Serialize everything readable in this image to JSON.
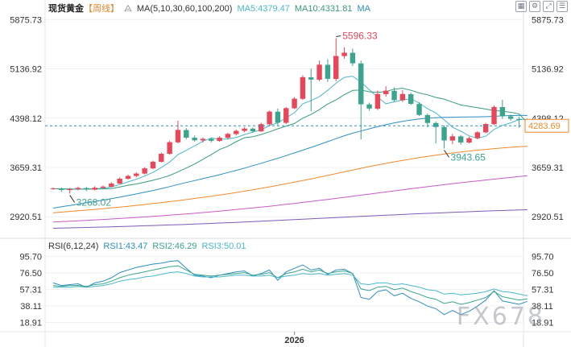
{
  "header": {
    "title": "现货黄金",
    "period": "【周线】",
    "ma_label": "MA(5,10,30,60,100,200)",
    "ma5_text": "MA5:4379.47",
    "ma10_text": "MA10:4331.81",
    "ma_more": "MA"
  },
  "rsi_header": {
    "label": "RSI(6,12,24)",
    "rsi1_text": "RSI1:43.47",
    "rsi2_text": "RSI2:46.29",
    "rsi3_text": "RSI3:50.01"
  },
  "watermark": "FX678",
  "toolbar": {
    "icons": [
      "grid-icon",
      "settings-icon",
      "expand-icon",
      "list-icon"
    ]
  },
  "colors": {
    "up": "#e8475a",
    "down": "#3aa58c",
    "ma5": "#4bb7c9",
    "ma10": "#3a9c7a",
    "ma30": "#2f8fc2",
    "ma60": "#f08a2c",
    "ma100": "#c85bc7",
    "ma200": "#7c5bb8",
    "rsi1": "#2f8fc2",
    "rsi2": "#3aa58c",
    "rsi3": "#4bb7c9",
    "price_line": "#2f8fc2"
  },
  "chart_data": {
    "type": "candlestick",
    "price_axis": {
      "ticks": [
        5875.73,
        5136.92,
        4398.12,
        3659.31,
        2920.51
      ],
      "ylim": [
        2730,
        6000
      ]
    },
    "rsi_axis": {
      "ticks": [
        95.7,
        76.5,
        57.31,
        38.11,
        18.91
      ],
      "ylim": [
        10,
        102
      ]
    },
    "time_labels": [
      {
        "index": 29,
        "text": "2026"
      }
    ],
    "current_price": 4283.69,
    "current_price_label": "4283.69",
    "annotations": [
      {
        "label": "5596.33",
        "index": 34,
        "value": 5596.33
      },
      {
        "label": "3268.02",
        "index": 2,
        "value": 3268.02
      },
      {
        "label": "3943.65",
        "index": 47,
        "value": 3943.65
      }
    ],
    "candles": [
      [
        3340,
        3346,
        3325,
        3358
      ],
      [
        3344,
        3322,
        3295,
        3360
      ],
      [
        3320,
        3336,
        3268.02,
        3352
      ],
      [
        3335,
        3352,
        3315,
        3372
      ],
      [
        3350,
        3328,
        3305,
        3366
      ],
      [
        3326,
        3356,
        3316,
        3378
      ],
      [
        3355,
        3372,
        3341,
        3388
      ],
      [
        3371,
        3418,
        3362,
        3438
      ],
      [
        3418,
        3491,
        3410,
        3509
      ],
      [
        3490,
        3532,
        3476,
        3553
      ],
      [
        3532,
        3568,
        3512,
        3586
      ],
      [
        3567,
        3646,
        3555,
        3665
      ],
      [
        3645,
        3745,
        3633,
        3761
      ],
      [
        3744,
        3864,
        3735,
        3884
      ],
      [
        3863,
        4038,
        3850,
        4060
      ],
      [
        4036,
        4222,
        4020,
        4362
      ],
      [
        4220,
        4106,
        4082,
        4250
      ],
      [
        4105,
        4066,
        4046,
        4138
      ],
      [
        4065,
        4088,
        4032,
        4110
      ],
      [
        4087,
        4058,
        4035,
        4110
      ],
      [
        4057,
        4105,
        4045,
        4128
      ],
      [
        4103,
        4162,
        4083,
        4182
      ],
      [
        4160,
        4208,
        4140,
        4228
      ],
      [
        4207,
        4242,
        4187,
        4262
      ],
      [
        4241,
        4202,
        4180,
        4260
      ],
      [
        4200,
        4308,
        4193,
        4330
      ],
      [
        4306,
        4496,
        4296,
        4512
      ],
      [
        4494,
        4330,
        4290,
        4542
      ],
      [
        4328,
        4548,
        4310,
        4566
      ],
      [
        4546,
        4690,
        4535,
        4712
      ],
      [
        4688,
        5012,
        4673,
        5042
      ],
      [
        5010,
        4976,
        4500,
        5140
      ],
      [
        4974,
        5200,
        4950,
        5260
      ],
      [
        5198,
        4988,
        4940,
        5280
      ],
      [
        4986,
        5330,
        4950,
        5596.33
      ],
      [
        5328,
        5380,
        5290,
        5460
      ],
      [
        5378,
        5220,
        5180,
        5440
      ],
      [
        5218,
        4606,
        4080,
        5260
      ],
      [
        4604,
        4542,
        4510,
        4630
      ],
      [
        4540,
        4760,
        4520,
        4812
      ],
      [
        4758,
        4810,
        4720,
        4875
      ],
      [
        4808,
        4668,
        4640,
        4860
      ],
      [
        4666,
        4760,
        4640,
        4820
      ],
      [
        4758,
        4612,
        4598,
        4780
      ],
      [
        4610,
        4446,
        4430,
        4636
      ],
      [
        4445,
        4326,
        4260,
        4466
      ],
      [
        4325,
        4266,
        4020,
        4348
      ],
      [
        4265,
        4064,
        3943.65,
        4288
      ],
      [
        4063,
        4126,
        4010,
        4160
      ],
      [
        4125,
        4034,
        4002,
        4145
      ],
      [
        4033,
        4098,
        4020,
        4120
      ],
      [
        4097,
        4186,
        4080,
        4205
      ],
      [
        4185,
        4310,
        4170,
        4328
      ],
      [
        4308,
        4566,
        4295,
        4588
      ],
      [
        4564,
        4428,
        4388,
        4672
      ],
      [
        4426,
        4388,
        4360,
        4452
      ],
      [
        4386,
        4370,
        4255,
        4420
      ],
      [
        4368,
        4283.69,
        4266,
        4392
      ]
    ],
    "series": [
      {
        "name": "MA5",
        "values": [
          3340,
          3337,
          3334,
          3334,
          3337,
          3339,
          3349,
          3367,
          3403,
          3443,
          3482,
          3531,
          3586,
          3658,
          3740,
          3852,
          3916,
          3983,
          4053,
          4099,
          4085,
          4084,
          4108,
          4153,
          4189,
          4225,
          4288,
          4328,
          4404,
          4480,
          4614,
          4659,
          4722,
          4815,
          4921,
          5009,
          5027,
          4938,
          4824,
          4711,
          4613,
          4642,
          4672,
          4690,
          4624,
          4540,
          4476,
          4374,
          4264,
          4202,
          4133,
          4098,
          4128,
          4230,
          4290,
          4327,
          4378,
          4379.47
        ]
      },
      {
        "name": "MA10",
        "values": [
          3340,
          3338,
          3336,
          3335,
          3335,
          3335,
          3338,
          3343,
          3366,
          3393,
          3412,
          3438,
          3467,
          3500,
          3538,
          3594,
          3651,
          3710,
          3781,
          3851,
          3928,
          3977,
          4045,
          4104,
          4120,
          4153,
          4194,
          4238,
          4279,
          4318,
          4398,
          4454,
          4525,
          4610,
          4672,
          4750,
          4814,
          4819,
          4793,
          4784,
          4797,
          4833,
          4846,
          4815,
          4776,
          4748,
          4709,
          4683,
          4639,
          4595,
          4575,
          4554,
          4534,
          4512,
          4502,
          4486,
          4463,
          4331.81
        ]
      },
      {
        "name": "MA30",
        "values": [
          3050,
          3070,
          3090,
          3110,
          3130,
          3150,
          3170,
          3192,
          3214,
          3238,
          3262,
          3288,
          3314,
          3342,
          3372,
          3403,
          3433,
          3462,
          3491,
          3520,
          3551,
          3583,
          3616,
          3650,
          3686,
          3722,
          3759,
          3797,
          3837,
          3877,
          3919,
          3960,
          4003,
          4046,
          4090,
          4134,
          4173,
          4206,
          4238,
          4270,
          4300,
          4327,
          4350,
          4370,
          4386,
          4398,
          4406,
          4410,
          4412,
          4414,
          4416,
          4418,
          4420,
          4425,
          4432,
          4438,
          4440,
          4438
        ]
      },
      {
        "name": "MA60",
        "values": [
          2980,
          2990,
          3000,
          3010,
          3020,
          3031,
          3042,
          3054,
          3066,
          3078,
          3091,
          3104,
          3118,
          3132,
          3147,
          3162,
          3178,
          3194,
          3211,
          3228,
          3246,
          3265,
          3284,
          3304,
          3325,
          3346,
          3368,
          3391,
          3414,
          3438,
          3463,
          3488,
          3514,
          3540,
          3567,
          3594,
          3621,
          3647,
          3672,
          3697,
          3720,
          3743,
          3765,
          3786,
          3806,
          3825,
          3843,
          3860,
          3876,
          3891,
          3905,
          3918,
          3930,
          3941,
          3951,
          3961,
          3970,
          3978
        ]
      },
      {
        "name": "MA100",
        "values": [
          2842,
          2848,
          2854,
          2860,
          2866,
          2873,
          2880,
          2887,
          2894,
          2902,
          2910,
          2918,
          2926,
          2935,
          2944,
          2953,
          2963,
          2973,
          2983,
          2994,
          3005,
          3016,
          3028,
          3040,
          3052,
          3065,
          3078,
          3092,
          3106,
          3120,
          3135,
          3150,
          3165,
          3180,
          3196,
          3212,
          3228,
          3244,
          3260,
          3276,
          3292,
          3308,
          3324,
          3340,
          3356,
          3371,
          3386,
          3401,
          3416,
          3430,
          3444,
          3458,
          3471,
          3484,
          3497,
          3510,
          3523,
          3536
        ]
      },
      {
        "name": "MA200",
        "values": [
          2748,
          2751,
          2754,
          2757,
          2760,
          2763,
          2766,
          2769,
          2773,
          2777,
          2781,
          2785,
          2789,
          2793,
          2797,
          2801,
          2806,
          2811,
          2816,
          2821,
          2826,
          2831,
          2836,
          2841,
          2847,
          2853,
          2859,
          2865,
          2871,
          2877,
          2883,
          2889,
          2895,
          2901,
          2907,
          2913,
          2919,
          2925,
          2931,
          2937,
          2943,
          2949,
          2955,
          2961,
          2966,
          2971,
          2976,
          2981,
          2986,
          2991,
          2996,
          3001,
          3006,
          3010,
          3014,
          3018,
          3022,
          3026
        ]
      },
      {
        "name": "RSI1",
        "values": [
          65,
          62,
          63,
          64,
          60,
          65,
          67,
          71,
          77,
          80,
          83,
          85,
          87,
          88,
          90,
          91,
          82,
          74,
          73,
          71,
          74,
          76,
          78,
          79,
          73,
          76,
          80,
          68,
          78,
          82,
          86,
          80,
          82,
          75,
          80,
          81,
          76,
          48,
          46,
          55,
          57,
          50,
          53,
          47,
          43,
          38,
          35,
          28,
          33,
          28,
          32,
          38,
          45,
          56,
          44,
          42,
          40,
          43.47
        ]
      },
      {
        "name": "RSI2",
        "values": [
          62,
          61,
          62,
          62,
          61,
          63,
          64,
          67,
          71,
          74,
          76,
          78,
          80,
          82,
          84,
          85,
          80,
          75,
          74,
          73,
          74,
          75,
          76,
          77,
          74,
          75,
          77,
          71,
          76,
          78,
          81,
          78,
          80,
          76,
          78,
          79,
          76,
          58,
          56,
          60,
          61,
          57,
          59,
          55,
          52,
          48,
          46,
          41,
          43,
          40,
          42,
          45,
          48,
          55,
          49,
          47,
          45,
          46.29
        ]
      },
      {
        "name": "RSI3",
        "values": [
          60,
          60,
          60,
          61,
          60,
          61,
          62,
          64,
          67,
          69,
          70,
          72,
          73,
          75,
          77,
          78,
          76,
          73,
          72,
          72,
          72,
          73,
          74,
          74,
          73,
          73,
          74,
          71,
          73,
          74,
          76,
          75,
          76,
          74,
          75,
          76,
          74,
          64,
          63,
          65,
          65,
          63,
          64,
          62,
          60,
          57,
          56,
          52,
          53,
          51,
          52,
          53,
          55,
          58,
          55,
          54,
          52,
          50.01
        ]
      }
    ]
  }
}
